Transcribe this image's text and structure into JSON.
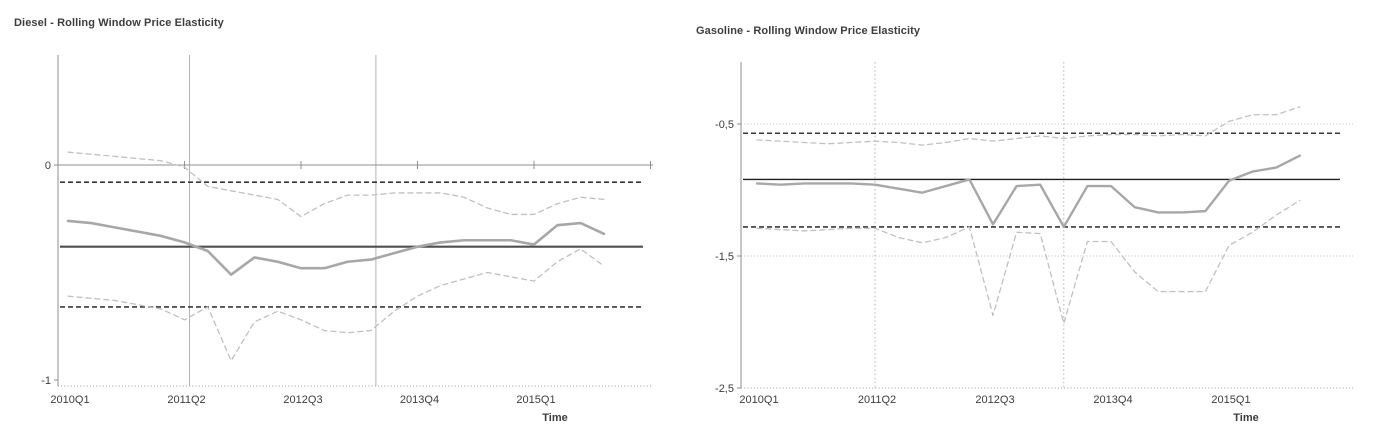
{
  "figure": {
    "charts": [
      {
        "title": "Diesel - Rolling Window Price Elasticity",
        "xlabel": "Time",
        "chart_data": {
          "type": "line",
          "categories": [
            "2010Q1",
            "2010Q2",
            "2010Q3",
            "2010Q4",
            "2011Q1",
            "2011Q2",
            "2011Q3",
            "2011Q4",
            "2012Q1",
            "2012Q2",
            "2012Q3",
            "2012Q4",
            "2013Q1",
            "2013Q2",
            "2013Q3",
            "2013Q4",
            "2014Q1",
            "2014Q2",
            "2014Q3",
            "2014Q4",
            "2015Q1",
            "2015Q2",
            "2015Q3",
            "2015Q4"
          ],
          "x_tick_labels": [
            "2010Q1",
            "2011Q2",
            "2012Q3",
            "2013Q4",
            "2015Q1"
          ],
          "x_tick_positions": [
            0,
            5,
            10,
            15,
            20
          ],
          "series": [
            {
              "name": "rolling-estimate",
              "values": [
                -0.26,
                -0.27,
                -0.29,
                -0.31,
                -0.33,
                -0.36,
                -0.4,
                -0.51,
                -0.43,
                -0.45,
                -0.48,
                -0.48,
                -0.45,
                -0.44,
                -0.41,
                -0.38,
                -0.36,
                -0.35,
                -0.35,
                -0.35,
                -0.37,
                -0.28,
                -0.27,
                -0.32
              ]
            },
            {
              "name": "ci-upper",
              "values": [
                0.06,
                0.05,
                0.04,
                0.03,
                0.02,
                -0.01,
                -0.1,
                -0.12,
                -0.14,
                -0.16,
                -0.24,
                -0.18,
                -0.14,
                -0.14,
                -0.13,
                -0.13,
                -0.13,
                -0.15,
                -0.2,
                -0.23,
                -0.23,
                -0.18,
                -0.15,
                -0.16
              ]
            },
            {
              "name": "ci-lower",
              "values": [
                -0.61,
                -0.62,
                -0.63,
                -0.65,
                -0.67,
                -0.72,
                -0.66,
                -0.91,
                -0.73,
                -0.68,
                -0.72,
                -0.77,
                -0.78,
                -0.77,
                -0.68,
                -0.61,
                -0.56,
                -0.53,
                -0.5,
                -0.52,
                -0.54,
                -0.45,
                -0.39,
                -0.47
              ]
            }
          ],
          "reference_lines": {
            "full_sample_estimate": -0.38,
            "full_sample_upper": -0.08,
            "full_sample_lower": -0.66
          },
          "vline_quarters": [
            "2011Q2",
            "2013Q2"
          ],
          "y_ticks": [
            {
              "label": "0",
              "value": 0
            },
            {
              "label": "-1",
              "value": -1
            }
          ],
          "ylim": [
            -1.03,
            0.51
          ],
          "grid": "zero-axis-line-only",
          "legend": "none"
        }
      },
      {
        "title": "Gasoline - Rolling Window Price Elasticity",
        "xlabel": "Time",
        "chart_data": {
          "type": "line",
          "categories": [
            "2010Q1",
            "2010Q2",
            "2010Q3",
            "2010Q4",
            "2011Q1",
            "2011Q2",
            "2011Q3",
            "2011Q4",
            "2012Q1",
            "2012Q2",
            "2012Q3",
            "2012Q4",
            "2013Q1",
            "2013Q2",
            "2013Q3",
            "2013Q4",
            "2014Q1",
            "2014Q2",
            "2014Q3",
            "2014Q4",
            "2015Q1",
            "2015Q2",
            "2015Q3",
            "2015Q4"
          ],
          "x_tick_labels": [
            "2010Q1",
            "2011Q2",
            "2012Q3",
            "2013Q4",
            "2015Q1"
          ],
          "x_tick_positions": [
            0,
            5,
            10,
            15,
            20
          ],
          "series": [
            {
              "name": "rolling-estimate",
              "values": [
                -0.95,
                -0.96,
                -0.95,
                -0.95,
                -0.95,
                -0.96,
                -0.99,
                -1.02,
                -0.97,
                -0.92,
                -1.26,
                -0.97,
                -0.96,
                -1.28,
                -0.97,
                -0.97,
                -1.13,
                -1.17,
                -1.17,
                -1.16,
                -0.93,
                -0.86,
                -0.83,
                -0.74
              ]
            },
            {
              "name": "ci-upper",
              "values": [
                -0.62,
                -0.63,
                -0.64,
                -0.65,
                -0.64,
                -0.63,
                -0.64,
                -0.66,
                -0.64,
                -0.61,
                -0.63,
                -0.61,
                -0.59,
                -0.61,
                -0.59,
                -0.58,
                -0.58,
                -0.59,
                -0.58,
                -0.59,
                -0.48,
                -0.43,
                -0.43,
                -0.37
              ]
            },
            {
              "name": "ci-lower",
              "values": [
                -1.29,
                -1.3,
                -1.31,
                -1.3,
                -1.29,
                -1.29,
                -1.36,
                -1.4,
                -1.36,
                -1.28,
                -1.95,
                -1.32,
                -1.33,
                -2.01,
                -1.39,
                -1.39,
                -1.62,
                -1.77,
                -1.77,
                -1.77,
                -1.42,
                -1.32,
                -1.19,
                -1.08
              ]
            }
          ],
          "reference_lines": {
            "full_sample_estimate": -0.92,
            "full_sample_upper": -0.57,
            "full_sample_lower": -1.28
          },
          "vline_quarters": [
            "2011Q2",
            "2013Q2"
          ],
          "y_ticks": [
            {
              "label": "-0,5",
              "value": -0.5
            },
            {
              "label": "-1,5",
              "value": -1.5
            },
            {
              "label": "-2,5",
              "value": -2.5
            }
          ],
          "ylim": [
            -2.5,
            -0.03
          ],
          "grid": "horizontal-dotted",
          "legend": "none"
        }
      }
    ]
  }
}
